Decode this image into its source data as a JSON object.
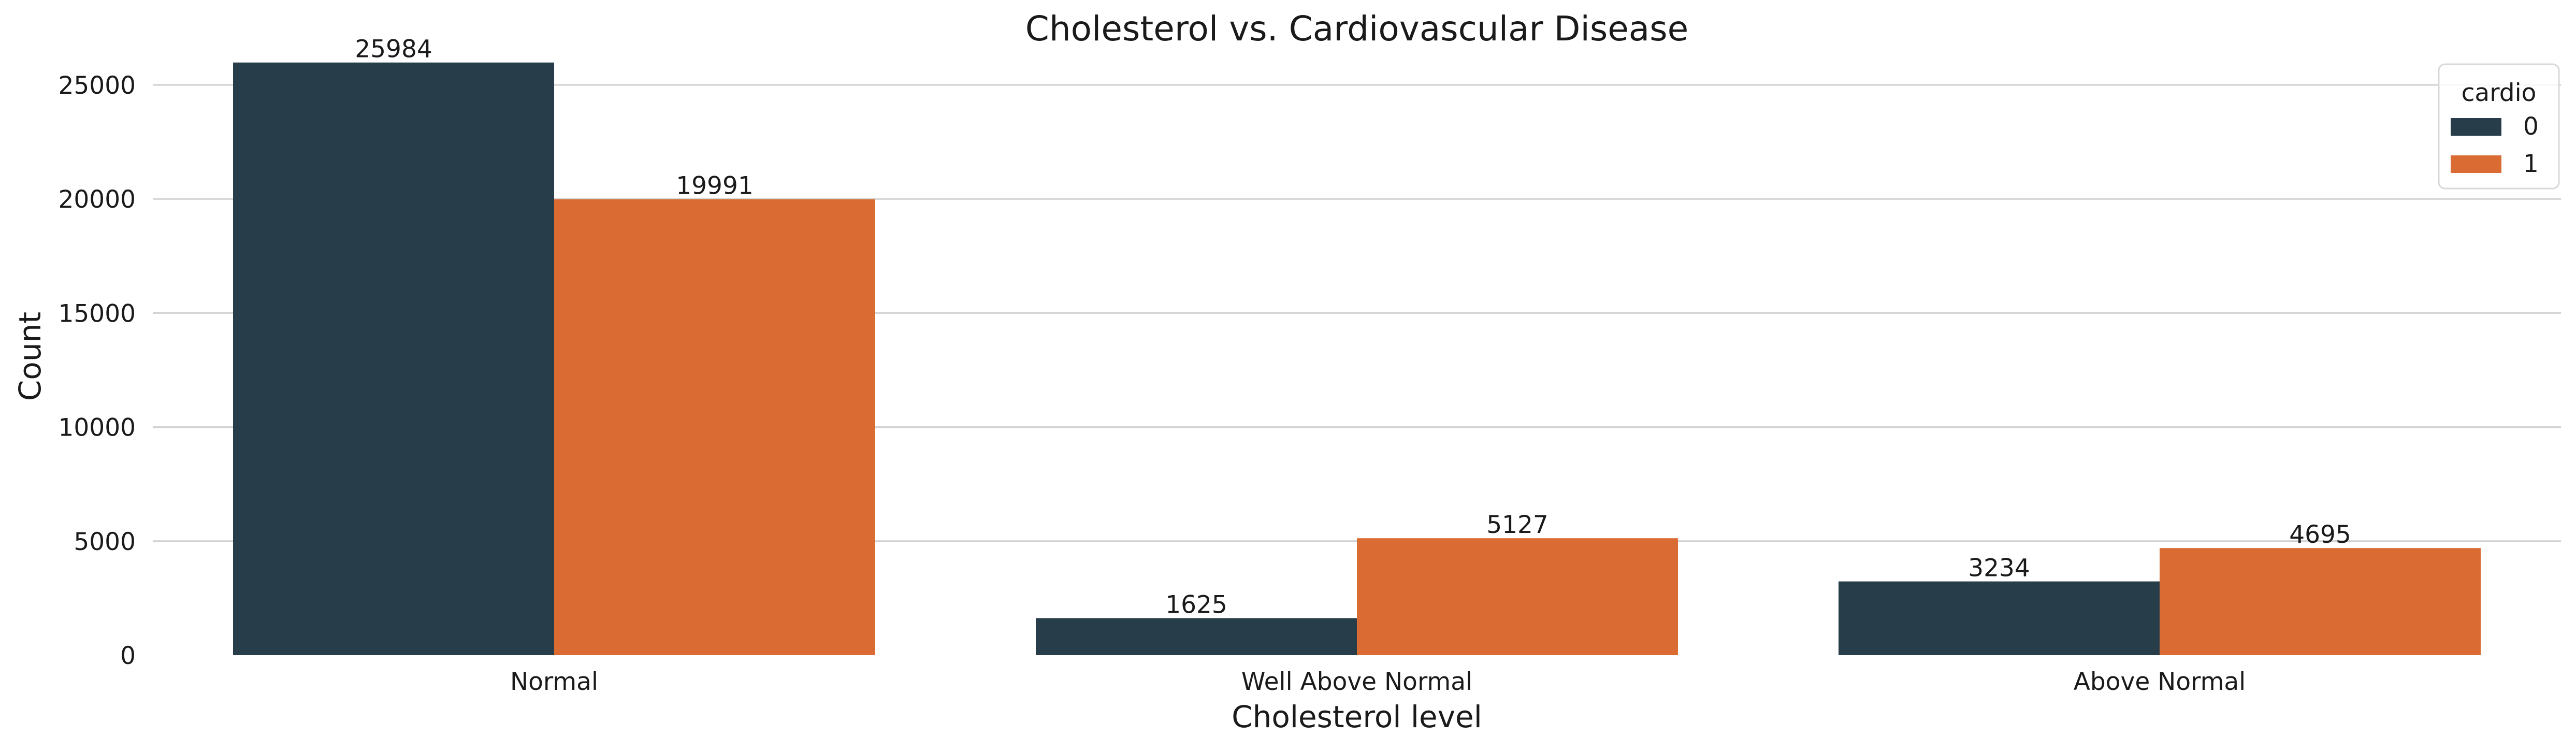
{
  "chart_data": {
    "type": "bar",
    "title": "Cholesterol vs. Cardiovascular Disease",
    "xlabel": "Cholesterol level",
    "ylabel": "Count",
    "categories": [
      "Normal",
      "Well Above Normal",
      "Above Normal"
    ],
    "series": [
      {
        "name": "0",
        "values": [
          25984,
          1625,
          3234
        ],
        "color": "#283d4a"
      },
      {
        "name": "1",
        "values": [
          19991,
          5127,
          4695
        ],
        "color": "#d96b33"
      }
    ],
    "ylim": [
      0,
      26000
    ],
    "yticks": [
      0,
      5000,
      10000,
      15000,
      20000,
      25000
    ],
    "grid": "horizontal",
    "legend": {
      "title": "cardio",
      "position": "top-right"
    }
  }
}
